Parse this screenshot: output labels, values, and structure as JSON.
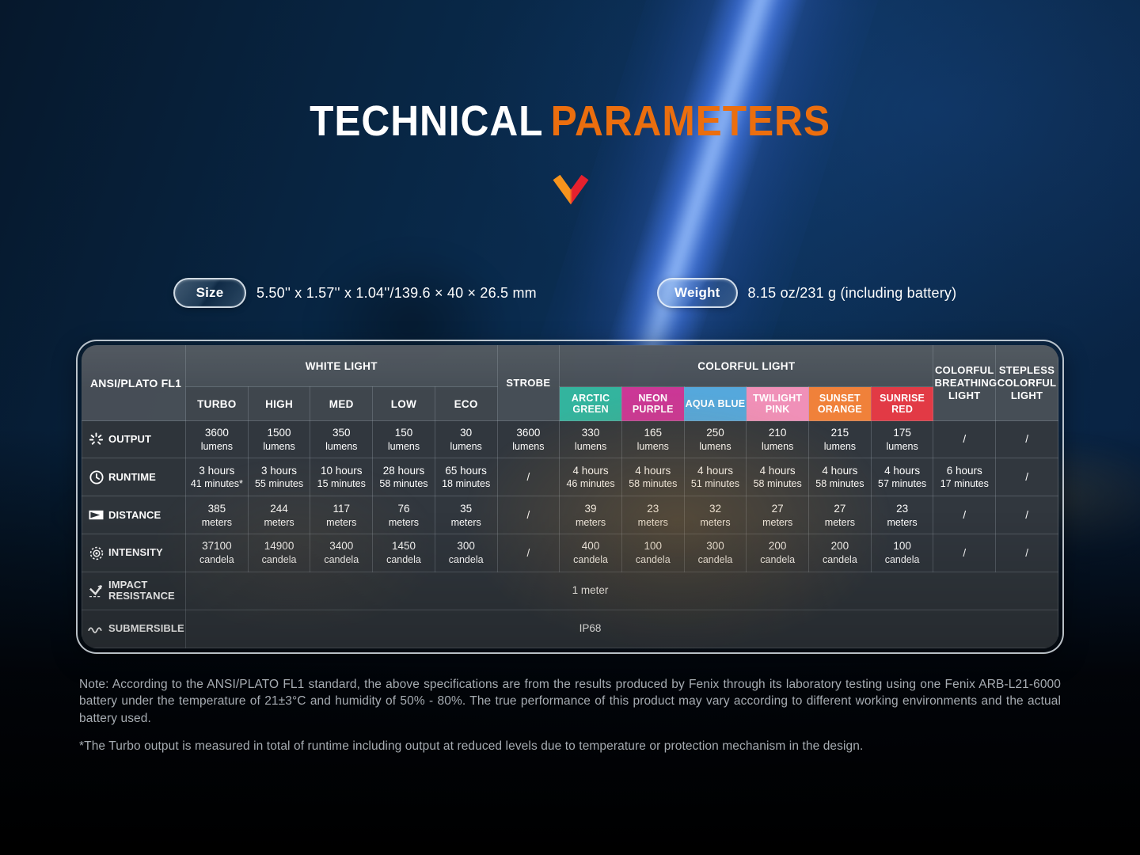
{
  "title": {
    "part1": "TECHNICAL",
    "part2": "PARAMETERS"
  },
  "colors": {
    "accent_orange": "#EB6E0E",
    "chevron_orange": "#F7941D",
    "chevron_red": "#E5212E",
    "beam_blue": "#4a7dff"
  },
  "specs": {
    "size_label": "Size",
    "size_value": "5.50'' x 1.57'' x 1.04''/139.6 × 40 × 26.5 mm",
    "weight_label": "Weight",
    "weight_value": "8.15 oz/231 g (including battery)"
  },
  "table": {
    "header": {
      "corner": "ANSI/PLATO FL1",
      "white_group": "WHITE LIGHT",
      "strobe": "STROBE",
      "colorful_group": "COLORFUL LIGHT",
      "breathing": "COLORFUL BREATHING LIGHT",
      "stepless": "STEPLESS COLORFUL LIGHT",
      "white_modes": [
        "TURBO",
        "HIGH",
        "MED",
        "LOW",
        "ECO"
      ],
      "color_modes": [
        {
          "label": "ARCTIC GREEN",
          "color": "#33B49E"
        },
        {
          "label": "NEON PURPLE",
          "color": "#CB3796"
        },
        {
          "label": "AQUA BLUE",
          "color": "#55A8DC"
        },
        {
          "label": "TWILIGHT PINK",
          "color": "#F090B8"
        },
        {
          "label": "SUNSET ORANGE",
          "color": "#F0813A"
        },
        {
          "label": "SUNRISE RED",
          "color": "#E23A45"
        }
      ]
    },
    "column_ids": [
      "turbo",
      "high",
      "med",
      "low",
      "eco",
      "strobe",
      "arctic-green",
      "neon-purple",
      "aqua-blue",
      "twilight-pink",
      "sunset-orange",
      "sunrise-red",
      "colorful-breathing",
      "stepless-colorful"
    ],
    "rows": [
      {
        "id": "output",
        "label": "OUTPUT",
        "icon": "light-rays-icon",
        "cells": [
          [
            "3600",
            "lumens"
          ],
          [
            "1500",
            "lumens"
          ],
          [
            "350",
            "lumens"
          ],
          [
            "150",
            "lumens"
          ],
          [
            "30",
            "lumens"
          ],
          [
            "3600",
            "lumens"
          ],
          [
            "330",
            "lumens"
          ],
          [
            "165",
            "lumens"
          ],
          [
            "250",
            "lumens"
          ],
          [
            "210",
            "lumens"
          ],
          [
            "215",
            "lumens"
          ],
          [
            "175",
            "lumens"
          ],
          "/",
          "/"
        ]
      },
      {
        "id": "runtime",
        "label": "RUNTIME",
        "icon": "clock-icon",
        "cells": [
          [
            "3 hours",
            "41 minutes*"
          ],
          [
            "3 hours",
            "55 minutes"
          ],
          [
            "10 hours",
            "15 minutes"
          ],
          [
            "28 hours",
            "58 minutes"
          ],
          [
            "65 hours",
            "18 minutes"
          ],
          "/",
          [
            "4 hours",
            "46 minutes"
          ],
          [
            "4 hours",
            "58 minutes"
          ],
          [
            "4 hours",
            "51 minutes"
          ],
          [
            "4 hours",
            "58 minutes"
          ],
          [
            "4 hours",
            "58 minutes"
          ],
          [
            "4 hours",
            "57 minutes"
          ],
          [
            "6 hours",
            "17 minutes"
          ],
          "/"
        ]
      },
      {
        "id": "distance",
        "label": "DISTANCE",
        "icon": "beam-distance-icon",
        "cells": [
          [
            "385",
            "meters"
          ],
          [
            "244",
            "meters"
          ],
          [
            "117",
            "meters"
          ],
          [
            "76",
            "meters"
          ],
          [
            "35",
            "meters"
          ],
          "/",
          [
            "39",
            "meters"
          ],
          [
            "23",
            "meters"
          ],
          [
            "32",
            "meters"
          ],
          [
            "27",
            "meters"
          ],
          [
            "27",
            "meters"
          ],
          [
            "23",
            "meters"
          ],
          "/",
          "/"
        ]
      },
      {
        "id": "intensity",
        "label": "INTENSITY",
        "icon": "target-icon",
        "cells": [
          [
            "37100",
            "candela"
          ],
          [
            "14900",
            "candela"
          ],
          [
            "3400",
            "candela"
          ],
          [
            "1450",
            "candela"
          ],
          [
            "300",
            "candela"
          ],
          "/",
          [
            "400",
            "candela"
          ],
          [
            "100",
            "candela"
          ],
          [
            "300",
            "candela"
          ],
          [
            "200",
            "candela"
          ],
          [
            "200",
            "candela"
          ],
          [
            "100",
            "candela"
          ],
          "/",
          "/"
        ]
      }
    ],
    "wide_rows": [
      {
        "id": "impact-resistance",
        "label": "IMPACT RESISTANCE",
        "icon": "impact-icon",
        "value": "1 meter"
      },
      {
        "id": "submersible",
        "label": "SUBMERSIBLE",
        "icon": "wave-icon",
        "value": "IP68"
      }
    ]
  },
  "notes": [
    "Note: According to the ANSI/PLATO FL1 standard, the above specifications are from the results produced by Fenix through its laboratory testing using one Fenix ARB-L21-6000 battery under the temperature of 21±3°C and humidity of 50% - 80%. The true performance of this product may vary according to different working environments and the actual battery used.",
    "*The Turbo output is measured in total of runtime including output at reduced levels due to temperature or protection mechanism in the design."
  ]
}
